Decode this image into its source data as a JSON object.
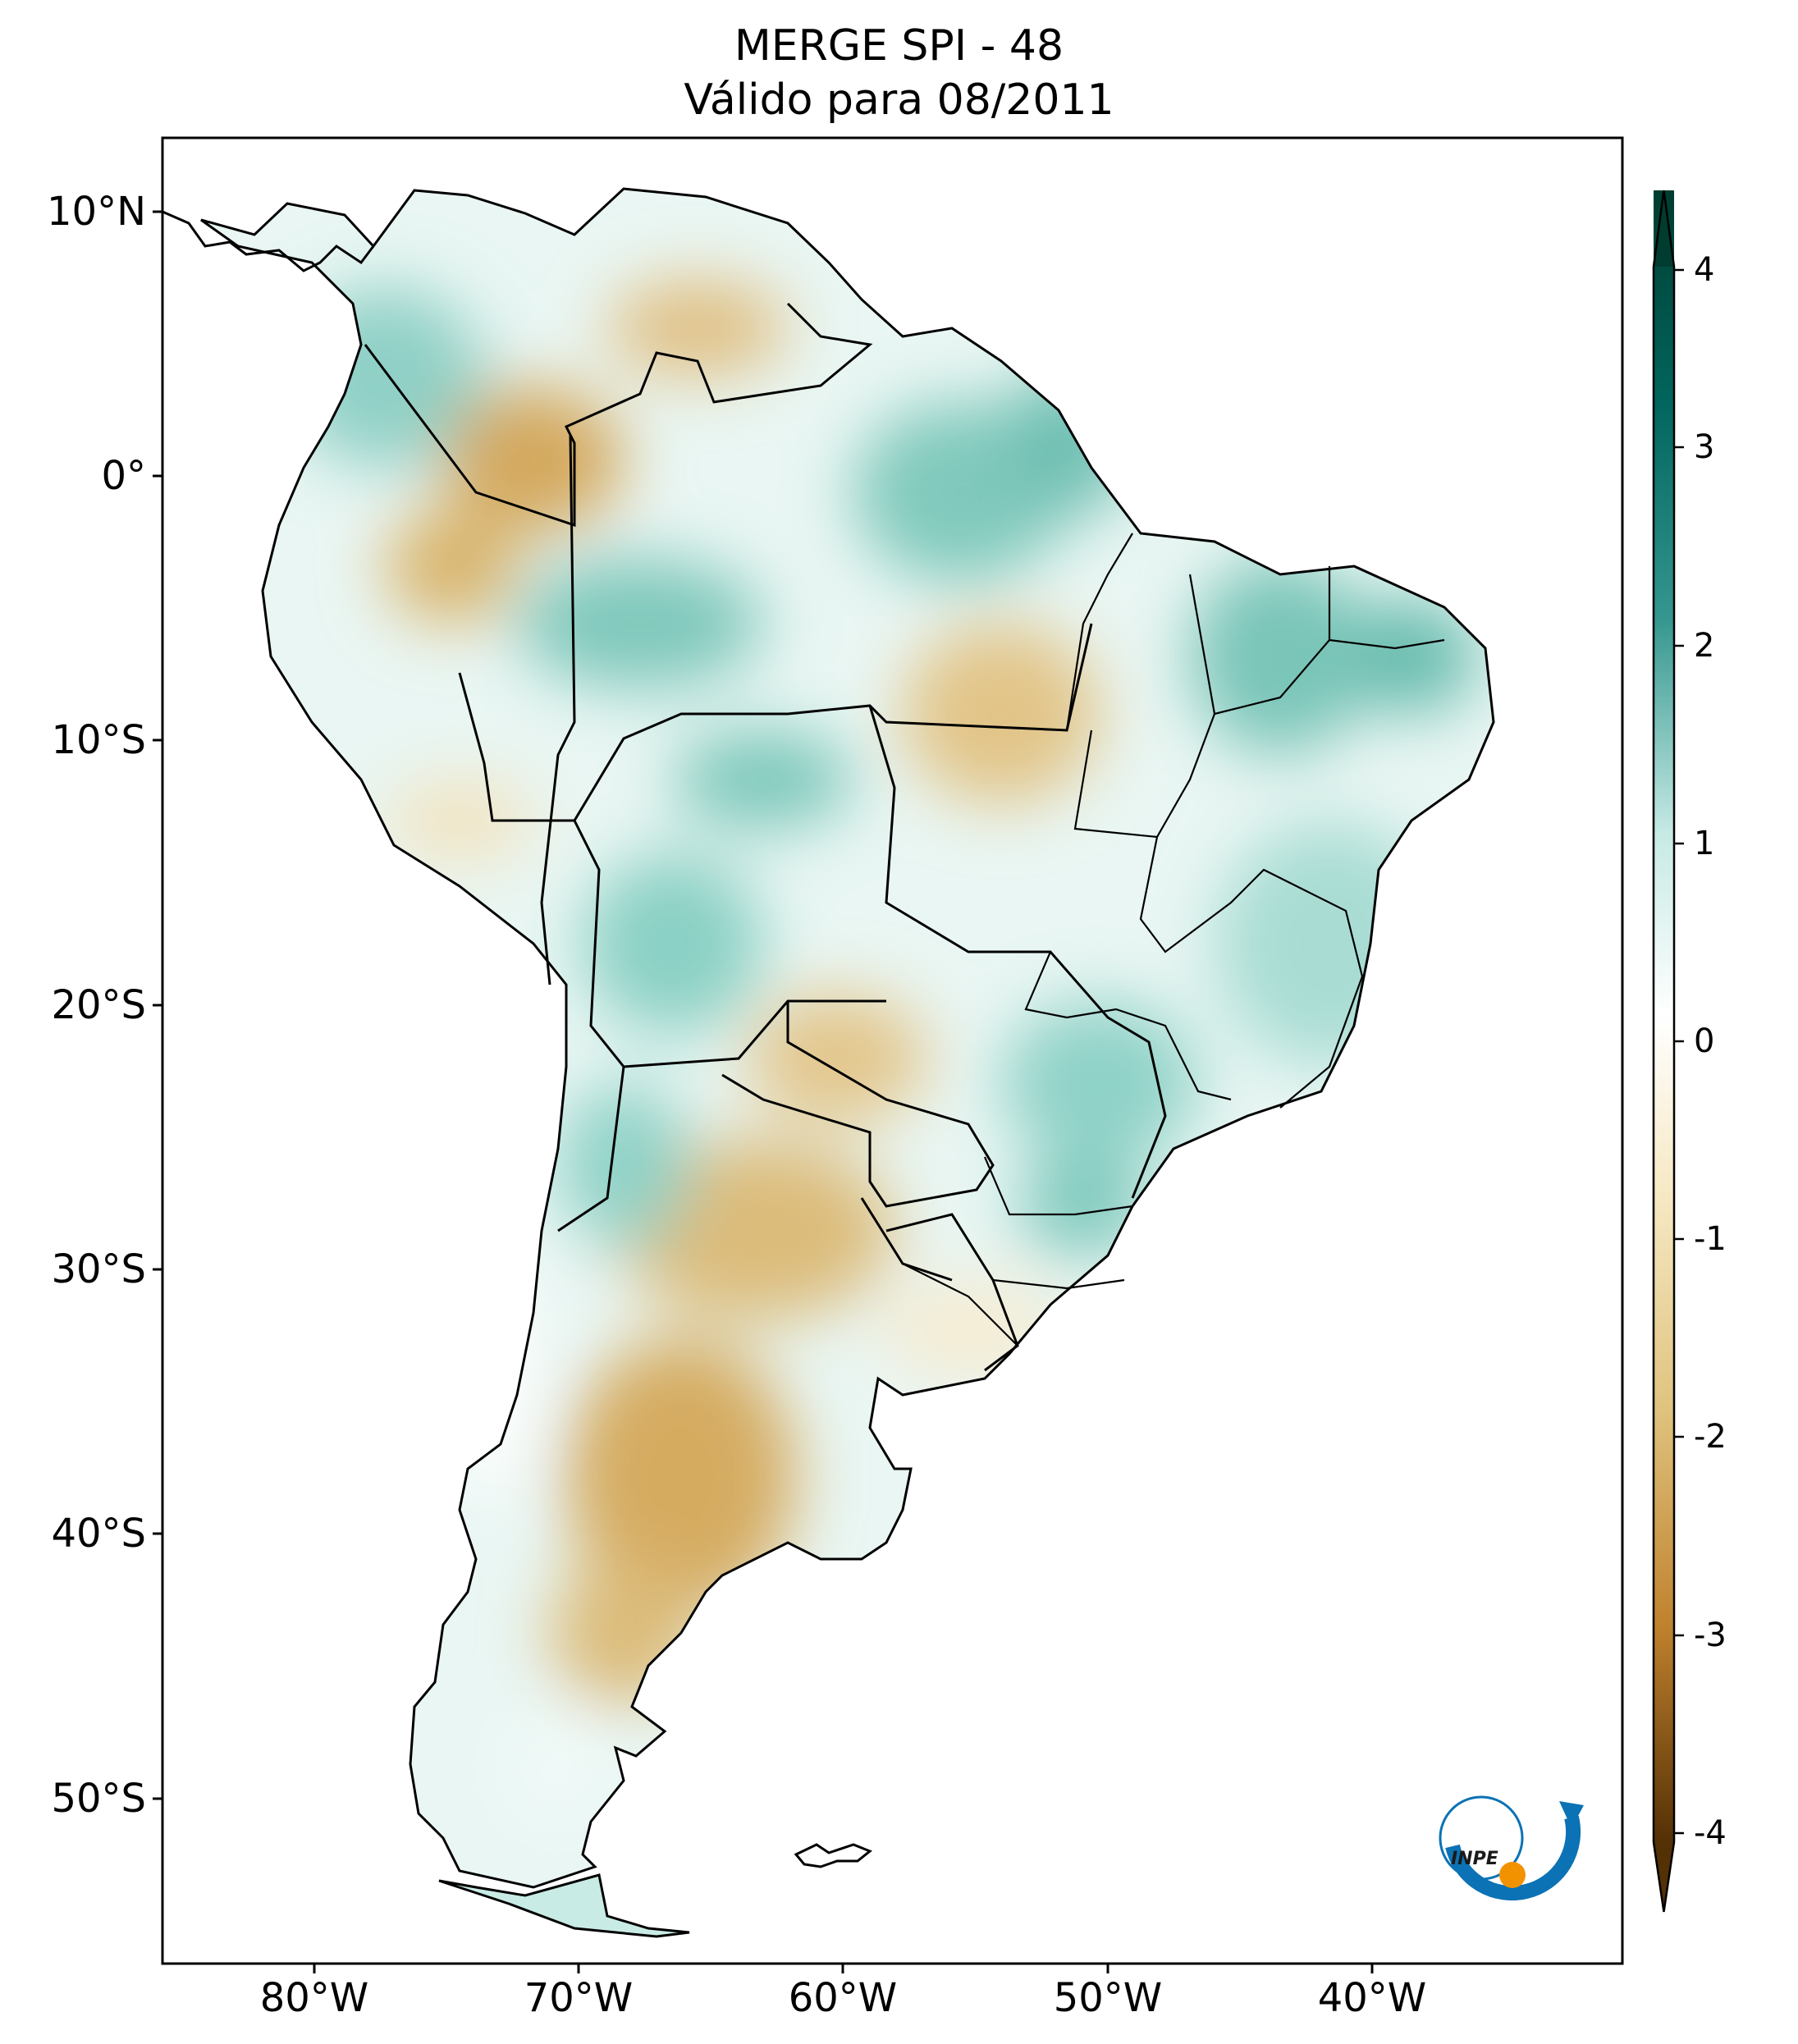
{
  "title": {
    "line1": "MERGE   SPI - 48",
    "line2": "Válido para 08/2011"
  },
  "map": {
    "region": "South America",
    "lat_labels": [
      "10°N",
      "0°",
      "10°S",
      "20°S",
      "30°S",
      "40°S",
      "50°S"
    ],
    "lon_labels": [
      "80°W",
      "70°W",
      "60°W",
      "50°W",
      "40°W"
    ]
  },
  "colorbar": {
    "ticks": [
      "4",
      "3",
      "2",
      "1",
      "0",
      "-1",
      "-2",
      "-3",
      "-4"
    ],
    "extend": "both",
    "colors": {
      "max": "#003c30",
      "high": "#01665e",
      "mid_high": "#35978f",
      "low_high": "#c7eae5",
      "zero": "#ffffff",
      "low_neg": "#f6e8c3",
      "mid_neg": "#dfc27d",
      "high_neg": "#bf812d",
      "min": "#543005"
    }
  },
  "logo": {
    "text": "INPE"
  }
}
